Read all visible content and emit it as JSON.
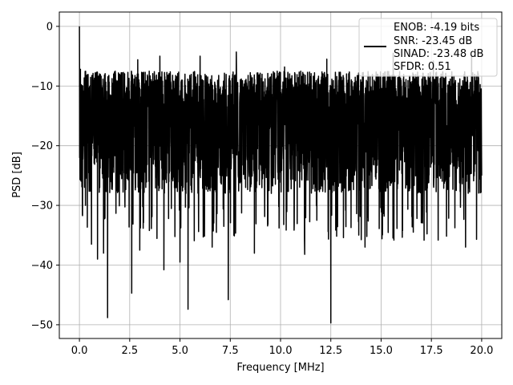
{
  "chart_data": {
    "type": "line",
    "xlabel": "Frequency [MHz]",
    "ylabel": "PSD [dB]",
    "xlim": [
      -1.0,
      21.0
    ],
    "ylim": [
      -52.3,
      2.4
    ],
    "x_ticks": [
      0.0,
      2.5,
      5.0,
      7.5,
      10.0,
      12.5,
      15.0,
      17.5,
      20.0
    ],
    "x_tick_labels": [
      "0.0",
      "2.5",
      "5.0",
      "7.5",
      "10.0",
      "12.5",
      "15.0",
      "17.5",
      "20.0"
    ],
    "y_ticks": [
      0,
      -10,
      -20,
      -30,
      -40,
      -50
    ],
    "y_tick_labels": [
      "0",
      "−10",
      "−20",
      "−30",
      "−40",
      "−50"
    ],
    "grid": true,
    "legend": {
      "location": "top-right",
      "entries": [
        "ENOB: -4.19 bits",
        "SNR: -23.45 dB",
        "SINAD: -23.48 dB",
        "SFDR: 0.51"
      ]
    },
    "series": [
      {
        "color": "#000000",
        "description_points": [
          [
            0.0,
            0.0
          ],
          [
            0.05,
            -7.2
          ],
          [
            0.1,
            -22.0
          ],
          [
            0.2,
            -12.0
          ],
          [
            0.3,
            -30.0
          ],
          [
            0.5,
            -11.5
          ],
          [
            0.6,
            -36.5
          ],
          [
            0.9,
            -39.0
          ],
          [
            1.2,
            -38.0
          ],
          [
            1.4,
            -48.8
          ],
          [
            2.6,
            -44.7
          ],
          [
            2.9,
            -5.6
          ],
          [
            3.0,
            -37.5
          ],
          [
            4.0,
            -5.0
          ],
          [
            4.2,
            -40.8
          ],
          [
            5.0,
            -39.5
          ],
          [
            5.4,
            -47.4
          ],
          [
            6.0,
            -5.0
          ],
          [
            6.6,
            -37.0
          ],
          [
            7.4,
            -45.8
          ],
          [
            7.8,
            -4.3
          ],
          [
            8.7,
            -38.0
          ],
          [
            10.2,
            -6.8
          ],
          [
            11.2,
            -38.2
          ],
          [
            12.5,
            -49.7
          ],
          [
            12.3,
            -5.5
          ],
          [
            14.2,
            -37.0
          ],
          [
            15.6,
            -4.5
          ],
          [
            16.6,
            -34.5
          ],
          [
            17.6,
            -5.8
          ],
          [
            19.2,
            -37.0
          ],
          [
            19.5,
            -5.0
          ],
          [
            20.0,
            -25.0
          ]
        ],
        "envelope": {
          "upper": -7.5,
          "lower": -28.0
        }
      }
    ]
  }
}
